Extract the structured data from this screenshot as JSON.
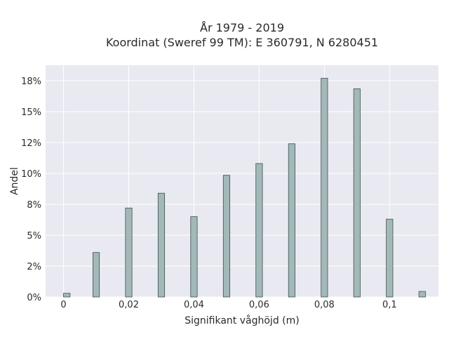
{
  "chart_data": {
    "type": "bar",
    "title_line1": "År 1979 - 2019",
    "title_line2": "Koordinat (Sweref 99 TM): E 360791, N 6280451",
    "xlabel": "Signifikant våghöjd (m)",
    "ylabel": "Andel",
    "xlim": [
      -0.0055,
      0.115
    ],
    "ylim": [
      0,
      18.75
    ],
    "x_ticks": [
      {
        "value": 0,
        "label": "0"
      },
      {
        "value": 0.02,
        "label": "0,02"
      },
      {
        "value": 0.04,
        "label": "0,04"
      },
      {
        "value": 0.06,
        "label": "0,06"
      },
      {
        "value": 0.08,
        "label": "0,08"
      },
      {
        "value": 0.1,
        "label": "0,1"
      }
    ],
    "y_ticks": [
      {
        "value": 0,
        "label": "0%"
      },
      {
        "value": 2.5,
        "label": "2%"
      },
      {
        "value": 5,
        "label": "5%"
      },
      {
        "value": 7.5,
        "label": "8%"
      },
      {
        "value": 10,
        "label": "10%"
      },
      {
        "value": 12.5,
        "label": "12%"
      },
      {
        "value": 15,
        "label": "15%"
      },
      {
        "value": 17.5,
        "label": "18%"
      }
    ],
    "bar_width": 0.002,
    "x": [
      0.001,
      0.01,
      0.02,
      0.03,
      0.04,
      0.05,
      0.06,
      0.07,
      0.08,
      0.09,
      0.1,
      0.11
    ],
    "values": [
      0.3,
      3.6,
      7.2,
      8.4,
      6.5,
      9.85,
      10.8,
      12.4,
      17.7,
      16.85,
      6.3,
      0.45
    ],
    "colors": {
      "bar_fill": "#a3b8b9",
      "bar_stroke": "#3d4f4f",
      "plot_bg": "#e9e9f1",
      "grid": "#ffffff"
    }
  }
}
